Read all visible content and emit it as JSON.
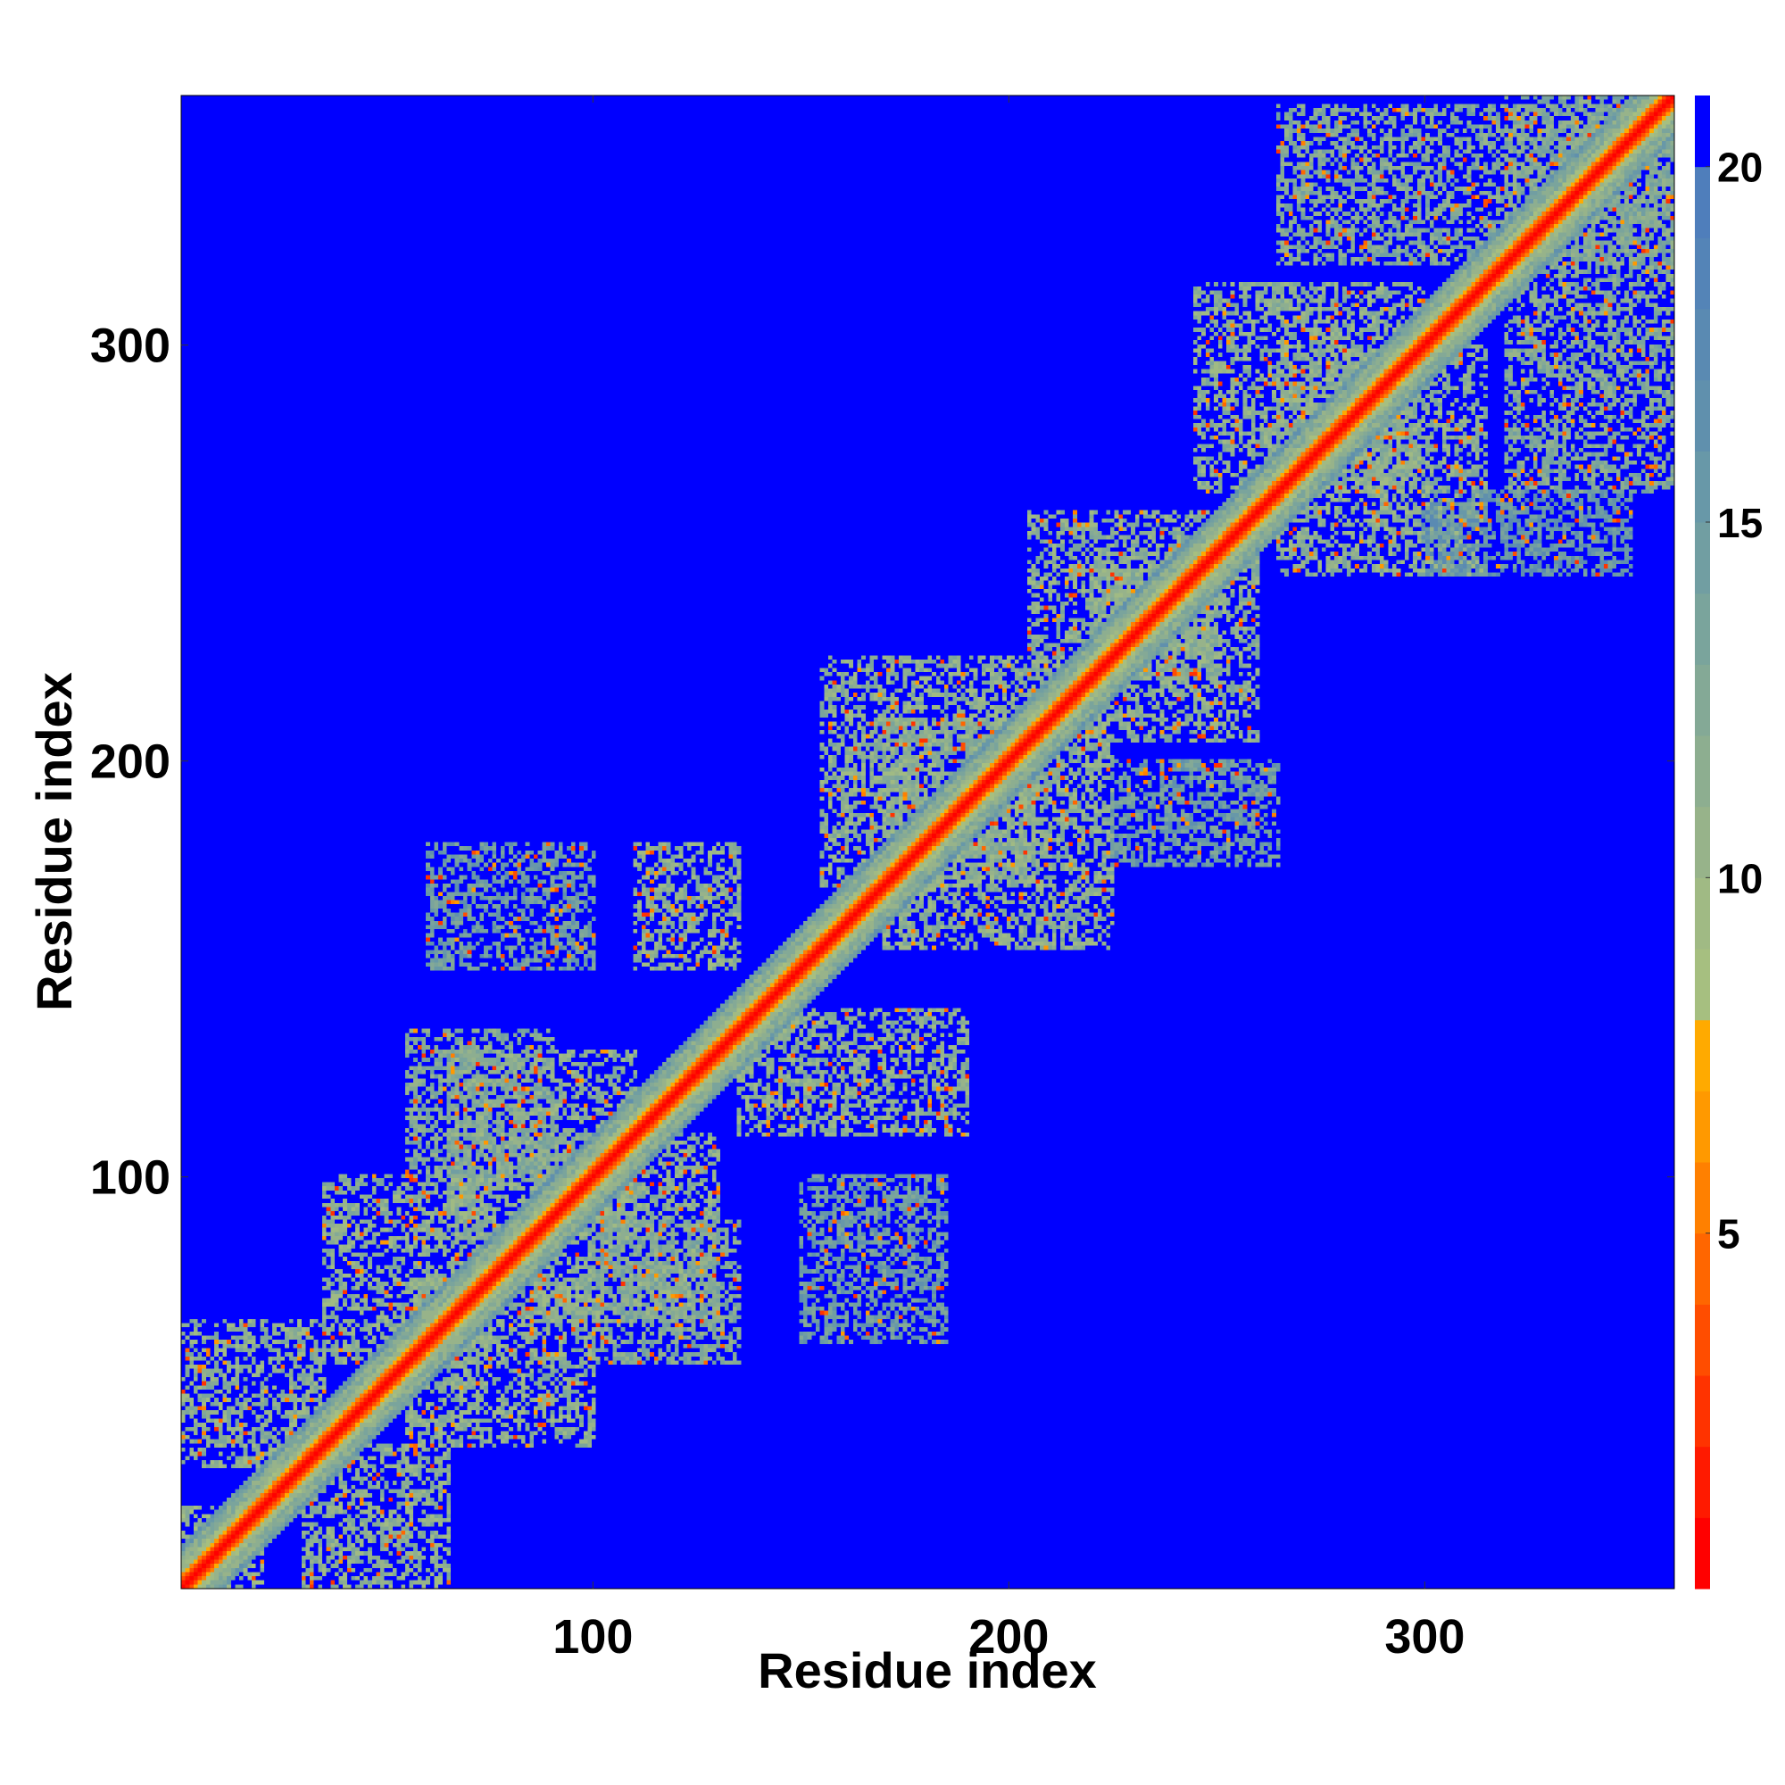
{
  "chart_data": {
    "type": "heatmap",
    "title": "",
    "xlabel": "Residue index",
    "ylabel": "Residue index",
    "xlim": [
      1,
      360
    ],
    "ylim": [
      1,
      360
    ],
    "x_ticks": [
      100,
      200,
      300
    ],
    "y_ticks": [
      100,
      200,
      300
    ],
    "x_tick_labels": [
      "100",
      "200",
      "300"
    ],
    "y_tick_labels": [
      "100",
      "200",
      "300"
    ],
    "colorbar": {
      "range": [
        0,
        21
      ],
      "ticks": [
        5,
        10,
        15,
        20
      ],
      "tick_labels": [
        "5",
        "10",
        "15",
        "20"
      ],
      "levels": [
        {
          "max": 1,
          "color": "#ff0000"
        },
        {
          "max": 2,
          "color": "#ff1a00"
        },
        {
          "max": 3,
          "color": "#ff3300"
        },
        {
          "max": 4,
          "color": "#ff4d00"
        },
        {
          "max": 5,
          "color": "#ff6600"
        },
        {
          "max": 6,
          "color": "#ff8000"
        },
        {
          "max": 7,
          "color": "#ff9900"
        },
        {
          "max": 8,
          "color": "#ffaa00"
        },
        {
          "max": 9,
          "color": "#a6bf80"
        },
        {
          "max": 10,
          "color": "#a0ba84"
        },
        {
          "max": 11,
          "color": "#97b38a"
        },
        {
          "max": 12,
          "color": "#8dae90"
        },
        {
          "max": 13,
          "color": "#84a996"
        },
        {
          "max": 14,
          "color": "#7aa49c"
        },
        {
          "max": 15,
          "color": "#719ea2"
        },
        {
          "max": 16,
          "color": "#6898a8"
        },
        {
          "max": 17,
          "color": "#6090ad"
        },
        {
          "max": 18,
          "color": "#5a8ab2"
        },
        {
          "max": 19,
          "color": "#5484b7"
        },
        {
          "max": 20,
          "color": "#4f7ebb"
        },
        {
          "max": 21,
          "color": "#0000ff"
        }
      ]
    },
    "background_value": 21,
    "diagonal_value": 1,
    "contact_regions": [
      {
        "x": [
          1,
          20
        ],
        "y": [
          1,
          20
        ],
        "value": 11
      },
      {
        "x": [
          1,
          35
        ],
        "y": [
          30,
          65
        ],
        "value": 12
      },
      {
        "x": [
          30,
          65
        ],
        "y": [
          1,
          35
        ],
        "value": 12
      },
      {
        "x": [
          35,
          75
        ],
        "y": [
          55,
          100
        ],
        "value": 12
      },
      {
        "x": [
          55,
          100
        ],
        "y": [
          35,
          75
        ],
        "value": 12
      },
      {
        "x": [
          65,
          110
        ],
        "y": [
          85,
          130
        ],
        "value": 12
      },
      {
        "x": [
          85,
          130
        ],
        "y": [
          65,
          110
        ],
        "value": 12
      },
      {
        "x": [
          100,
          135
        ],
        "y": [
          55,
          90
        ],
        "value": 13
      },
      {
        "x": [
          55,
          90
        ],
        "y": [
          100,
          135
        ],
        "value": 13
      },
      {
        "x": [
          110,
          135
        ],
        "y": [
          150,
          180
        ],
        "value": 12
      },
      {
        "x": [
          135,
          190
        ],
        "y": [
          110,
          140
        ],
        "value": 12
      },
      {
        "x": [
          150,
          185
        ],
        "y": [
          60,
          100
        ],
        "value": 15
      },
      {
        "x": [
          60,
          100
        ],
        "y": [
          150,
          180
        ],
        "value": 15
      },
      {
        "x": [
          155,
          210
        ],
        "y": [
          170,
          225
        ],
        "value": 12
      },
      {
        "x": [
          170,
          225
        ],
        "y": [
          155,
          210
        ],
        "value": 12
      },
      {
        "x": [
          205,
          250
        ],
        "y": [
          220,
          260
        ],
        "value": 12
      },
      {
        "x": [
          220,
          260
        ],
        "y": [
          205,
          250
        ],
        "value": 12
      },
      {
        "x": [
          225,
          265
        ],
        "y": [
          175,
          200
        ],
        "value": 15
      },
      {
        "x": [
          245,
          300
        ],
        "y": [
          265,
          315
        ],
        "value": 12
      },
      {
        "x": [
          265,
          315
        ],
        "y": [
          245,
          300
        ],
        "value": 12
      },
      {
        "x": [
          265,
          360
        ],
        "y": [
          320,
          358
        ],
        "value": 13
      },
      {
        "x": [
          320,
          360
        ],
        "y": [
          265,
          360
        ],
        "value": 13
      },
      {
        "x": [
          300,
          350
        ],
        "y": [
          245,
          265
        ],
        "value": 16
      }
    ]
  }
}
